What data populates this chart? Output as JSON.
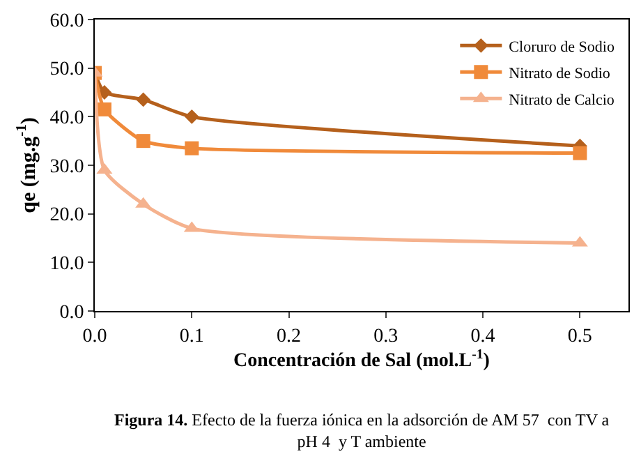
{
  "chart_data": {
    "type": "line",
    "x": [
      0,
      0.01,
      0.05,
      0.1,
      0.5
    ],
    "series": [
      {
        "name": "Cloruro de Sodio",
        "color": "#b5601c",
        "marker": "diamond",
        "values": [
          49,
          45,
          43.5,
          40,
          34
        ]
      },
      {
        "name": "Nitrato de Sodio",
        "color": "#f08a3a",
        "marker": "square",
        "values": [
          49,
          41.5,
          35,
          33.5,
          32.5
        ]
      },
      {
        "name": "Nitrato de Calcio",
        "color": "#f5b28e",
        "marker": "triangle",
        "values": [
          49,
          29,
          22,
          17,
          14
        ]
      }
    ],
    "xlabel": "Concentración de Sal (mol.L$^{-1}$)",
    "ylabel": "qe (mg.g$^{-1}$)",
    "xlim": [
      0,
      0.55
    ],
    "xticks": [
      {
        "value": 0,
        "label": "0.0"
      },
      0.1,
      0.2,
      0.3,
      0.4,
      0.5
    ],
    "ylim": [
      0,
      60
    ],
    "yticks": [
      {
        "value": 0,
        "label": "0.0"
      },
      {
        "value": 10,
        "label": "10.0"
      },
      {
        "value": 20,
        "label": "20.0"
      },
      {
        "value": 30,
        "label": "30.0"
      },
      {
        "value": 40,
        "label": "40.0"
      },
      {
        "value": 50,
        "label": "50.0"
      },
      {
        "value": 60,
        "label": "60.0"
      }
    ],
    "legend": "top right",
    "annotations": [
      "Figura 14. Efecto de la fuerza iónica en la adsorción de AM 57  con TV a\npH 4  y T ambiente"
    ]
  }
}
